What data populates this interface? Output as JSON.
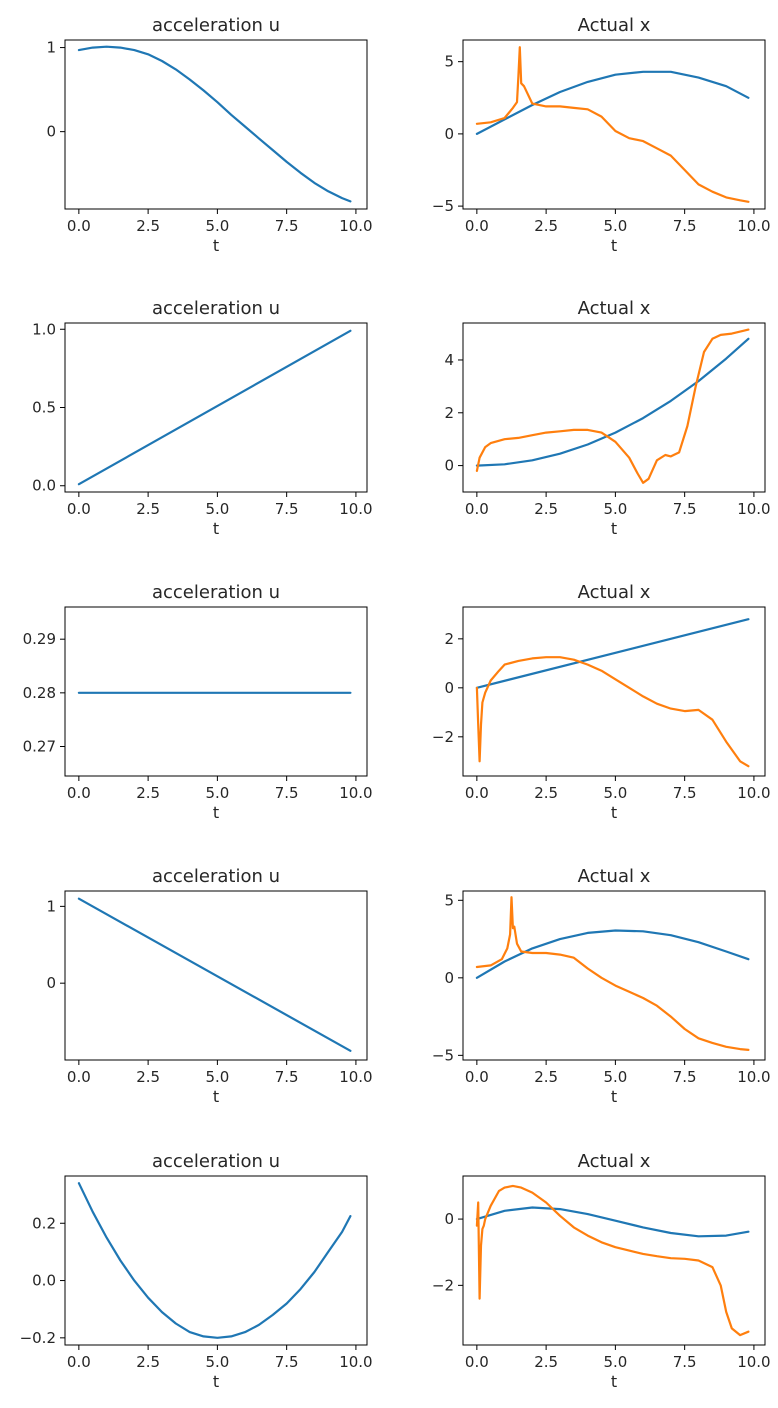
{
  "chart_data": [
    {
      "type": "line",
      "title": "acceleration u",
      "xlabel": "t",
      "ylabel": "",
      "xlim": [
        -0.5,
        10.4
      ],
      "ylim": [
        -0.92,
        1.09
      ],
      "xticks": [
        0.0,
        2.5,
        5.0,
        7.5,
        10.0
      ],
      "xtick_labels": [
        "0.0",
        "2.5",
        "5.0",
        "7.5",
        "10.0"
      ],
      "yticks": [
        0,
        1
      ],
      "ytick_labels": [
        "0",
        "1"
      ],
      "series": [
        {
          "color": "#1f77b4",
          "x": [
            0,
            0.5,
            1,
            1.5,
            2,
            2.5,
            3,
            3.5,
            4,
            4.5,
            5,
            5.5,
            6,
            6.5,
            7,
            7.5,
            8,
            8.5,
            9,
            9.5,
            9.8
          ],
          "y": [
            0.97,
            1.0,
            1.01,
            1.0,
            0.97,
            0.92,
            0.84,
            0.74,
            0.62,
            0.49,
            0.35,
            0.2,
            0.06,
            -0.08,
            -0.22,
            -0.36,
            -0.49,
            -0.61,
            -0.71,
            -0.79,
            -0.83
          ]
        }
      ]
    },
    {
      "type": "line",
      "title": "Actual x",
      "xlabel": "t",
      "ylabel": "",
      "xlim": [
        -0.5,
        10.4
      ],
      "ylim": [
        -5.2,
        6.5
      ],
      "xticks": [
        0.0,
        2.5,
        5.0,
        7.5,
        10.0
      ],
      "xtick_labels": [
        "0.0",
        "2.5",
        "5.0",
        "7.5",
        "10.0"
      ],
      "yticks": [
        -5,
        0,
        5
      ],
      "ytick_labels": [
        "−5",
        "0",
        "5"
      ],
      "series": [
        {
          "color": "#1f77b4",
          "x": [
            0,
            1,
            2,
            3,
            4,
            5,
            6,
            7,
            8,
            9,
            9.8
          ],
          "y": [
            0.0,
            1.0,
            2.0,
            2.9,
            3.6,
            4.1,
            4.3,
            4.3,
            3.9,
            3.3,
            2.5
          ]
        },
        {
          "color": "#ff7f0e",
          "x": [
            0,
            0.5,
            1,
            1.3,
            1.45,
            1.5,
            1.55,
            1.6,
            1.7,
            2,
            2.5,
            3,
            3.5,
            4,
            4.5,
            5,
            5.5,
            6,
            6.5,
            7,
            7.5,
            8,
            8.5,
            9,
            9.5,
            9.8
          ],
          "y": [
            0.7,
            0.8,
            1.1,
            1.8,
            2.2,
            4.0,
            6.0,
            3.5,
            3.3,
            2.1,
            1.9,
            1.9,
            1.8,
            1.7,
            1.2,
            0.2,
            -0.3,
            -0.5,
            -1.0,
            -1.5,
            -2.5,
            -3.5,
            -4.0,
            -4.4,
            -4.6,
            -4.7
          ]
        }
      ]
    },
    {
      "type": "line",
      "title": "acceleration u",
      "xlabel": "t",
      "ylabel": "",
      "xlim": [
        -0.5,
        10.4
      ],
      "ylim": [
        -0.04,
        1.04
      ],
      "xticks": [
        0.0,
        2.5,
        5.0,
        7.5,
        10.0
      ],
      "xtick_labels": [
        "0.0",
        "2.5",
        "5.0",
        "7.5",
        "10.0"
      ],
      "yticks": [
        0.0,
        0.5,
        1.0
      ],
      "ytick_labels": [
        "0.0",
        "0.5",
        "1.0"
      ],
      "series": [
        {
          "color": "#1f77b4",
          "x": [
            0,
            9.8
          ],
          "y": [
            0.01,
            0.99
          ]
        }
      ]
    },
    {
      "type": "line",
      "title": "Actual x",
      "xlabel": "t",
      "ylabel": "",
      "xlim": [
        -0.5,
        10.4
      ],
      "ylim": [
        -1.0,
        5.4
      ],
      "xticks": [
        0.0,
        2.5,
        5.0,
        7.5,
        10.0
      ],
      "xtick_labels": [
        "0.0",
        "2.5",
        "5.0",
        "7.5",
        "10.0"
      ],
      "yticks": [
        0,
        2,
        4
      ],
      "ytick_labels": [
        "0",
        "2",
        "4"
      ],
      "series": [
        {
          "color": "#1f77b4",
          "x": [
            0,
            1,
            2,
            3,
            4,
            5,
            6,
            7,
            8,
            9,
            9.8
          ],
          "y": [
            0.0,
            0.05,
            0.2,
            0.45,
            0.8,
            1.25,
            1.8,
            2.45,
            3.2,
            4.05,
            4.8
          ]
        },
        {
          "color": "#ff7f0e",
          "x": [
            0,
            0.1,
            0.3,
            0.5,
            1,
            1.5,
            2,
            2.5,
            3,
            3.5,
            4,
            4.5,
            5,
            5.5,
            5.8,
            6,
            6.2,
            6.5,
            6.8,
            7,
            7.3,
            7.6,
            7.9,
            8.2,
            8.5,
            8.8,
            9.2,
            9.6,
            9.8
          ],
          "y": [
            -0.2,
            0.3,
            0.7,
            0.85,
            1.0,
            1.05,
            1.15,
            1.25,
            1.3,
            1.35,
            1.35,
            1.25,
            0.9,
            0.3,
            -0.3,
            -0.65,
            -0.5,
            0.2,
            0.4,
            0.35,
            0.5,
            1.5,
            3.0,
            4.3,
            4.8,
            4.95,
            5.0,
            5.1,
            5.15
          ]
        }
      ]
    },
    {
      "type": "line",
      "title": "acceleration u",
      "xlabel": "t",
      "ylabel": "",
      "xlim": [
        -0.5,
        10.4
      ],
      "ylim": [
        0.2645,
        0.296
      ],
      "xticks": [
        0.0,
        2.5,
        5.0,
        7.5,
        10.0
      ],
      "xtick_labels": [
        "0.0",
        "2.5",
        "5.0",
        "7.5",
        "10.0"
      ],
      "yticks": [
        0.27,
        0.28,
        0.29
      ],
      "ytick_labels": [
        "0.27",
        "0.28",
        "0.29"
      ],
      "series": [
        {
          "color": "#1f77b4",
          "x": [
            0,
            9.8
          ],
          "y": [
            0.28,
            0.28
          ]
        }
      ]
    },
    {
      "type": "line",
      "title": "Actual x",
      "xlabel": "t",
      "ylabel": "",
      "xlim": [
        -0.5,
        10.4
      ],
      "ylim": [
        -3.6,
        3.3
      ],
      "xticks": [
        0.0,
        2.5,
        5.0,
        7.5,
        10.0
      ],
      "xtick_labels": [
        "0.0",
        "2.5",
        "5.0",
        "7.5",
        "10.0"
      ],
      "yticks": [
        -2,
        0,
        2
      ],
      "ytick_labels": [
        "−2",
        "0",
        "2"
      ],
      "series": [
        {
          "color": "#1f77b4",
          "x": [
            0,
            9.8
          ],
          "y": [
            0.0,
            2.8
          ]
        },
        {
          "color": "#ff7f0e",
          "x": [
            0,
            0.05,
            0.1,
            0.15,
            0.2,
            0.3,
            0.5,
            0.8,
            1,
            1.5,
            2,
            2.5,
            3,
            3.5,
            4,
            4.5,
            5,
            5.5,
            6,
            6.5,
            7,
            7.5,
            8,
            8.5,
            9,
            9.5,
            9.8
          ],
          "y": [
            0.0,
            -1.5,
            -3.0,
            -1.5,
            -0.6,
            -0.2,
            0.3,
            0.7,
            0.95,
            1.1,
            1.2,
            1.25,
            1.25,
            1.15,
            0.95,
            0.7,
            0.35,
            0.0,
            -0.35,
            -0.65,
            -0.85,
            -0.95,
            -0.9,
            -1.3,
            -2.2,
            -3.0,
            -3.2
          ]
        }
      ]
    },
    {
      "type": "line",
      "title": "acceleration u",
      "xlabel": "t",
      "ylabel": "",
      "xlim": [
        -0.5,
        10.4
      ],
      "ylim": [
        -1.0,
        1.2
      ],
      "xticks": [
        0.0,
        2.5,
        5.0,
        7.5,
        10.0
      ],
      "xtick_labels": [
        "0.0",
        "2.5",
        "5.0",
        "7.5",
        "10.0"
      ],
      "yticks": [
        0,
        1
      ],
      "ytick_labels": [
        "0",
        "1"
      ],
      "series": [
        {
          "color": "#1f77b4",
          "x": [
            0,
            9.8
          ],
          "y": [
            1.1,
            -0.88
          ]
        }
      ]
    },
    {
      "type": "line",
      "title": "Actual x",
      "xlabel": "t",
      "ylabel": "",
      "xlim": [
        -0.5,
        10.4
      ],
      "ylim": [
        -5.3,
        5.6
      ],
      "xticks": [
        0.0,
        2.5,
        5.0,
        7.5,
        10.0
      ],
      "xtick_labels": [
        "0.0",
        "2.5",
        "5.0",
        "7.5",
        "10.0"
      ],
      "yticks": [
        -5,
        0,
        5
      ],
      "ytick_labels": [
        "−5",
        "0",
        "5"
      ],
      "series": [
        {
          "color": "#1f77b4",
          "x": [
            0,
            1,
            2,
            3,
            4,
            5,
            6,
            7,
            8,
            9,
            9.8
          ],
          "y": [
            0.0,
            1.05,
            1.9,
            2.5,
            2.9,
            3.05,
            3.0,
            2.75,
            2.3,
            1.7,
            1.2
          ]
        },
        {
          "color": "#ff7f0e",
          "x": [
            0,
            0.5,
            0.9,
            1.1,
            1.2,
            1.25,
            1.3,
            1.35,
            1.45,
            1.6,
            2,
            2.5,
            3,
            3.5,
            4,
            4.5,
            5,
            5.5,
            6,
            6.5,
            7,
            7.5,
            8,
            8.5,
            9,
            9.5,
            9.8
          ],
          "y": [
            0.7,
            0.8,
            1.2,
            1.9,
            2.8,
            5.2,
            3.2,
            3.3,
            2.2,
            1.7,
            1.6,
            1.6,
            1.5,
            1.3,
            0.6,
            0.0,
            -0.5,
            -0.9,
            -1.3,
            -1.8,
            -2.5,
            -3.3,
            -3.9,
            -4.2,
            -4.45,
            -4.6,
            -4.65
          ]
        }
      ]
    },
    {
      "type": "line",
      "title": "acceleration u",
      "xlabel": "t",
      "ylabel": "",
      "xlim": [
        -0.5,
        10.4
      ],
      "ylim": [
        -0.225,
        0.365
      ],
      "xticks": [
        0.0,
        2.5,
        5.0,
        7.5,
        10.0
      ],
      "xtick_labels": [
        "0.0",
        "2.5",
        "5.0",
        "7.5",
        "10.0"
      ],
      "yticks": [
        -0.2,
        0.0,
        0.2
      ],
      "ytick_labels": [
        "−0.2",
        "0.0",
        "0.2"
      ],
      "series": [
        {
          "color": "#1f77b4",
          "x": [
            0,
            0.5,
            1,
            1.5,
            2,
            2.5,
            3,
            3.5,
            4,
            4.5,
            5,
            5.5,
            6,
            6.5,
            7,
            7.5,
            8,
            8.5,
            9,
            9.5,
            9.8
          ],
          "y": [
            0.34,
            0.24,
            0.15,
            0.07,
            -0.0,
            -0.06,
            -0.11,
            -0.15,
            -0.18,
            -0.195,
            -0.2,
            -0.195,
            -0.18,
            -0.155,
            -0.12,
            -0.08,
            -0.03,
            0.03,
            0.1,
            0.17,
            0.225
          ]
        }
      ]
    },
    {
      "type": "line",
      "title": "Actual x",
      "xlabel": "t",
      "ylabel": "",
      "xlim": [
        -0.5,
        10.4
      ],
      "ylim": [
        -3.8,
        1.3
      ],
      "xticks": [
        0.0,
        2.5,
        5.0,
        7.5,
        10.0
      ],
      "xtick_labels": [
        "0.0",
        "2.5",
        "5.0",
        "7.5",
        "10.0"
      ],
      "yticks": [
        -2,
        0
      ],
      "ytick_labels": [
        "−2",
        "0"
      ],
      "series": [
        {
          "color": "#1f77b4",
          "x": [
            0,
            1,
            2,
            3,
            4,
            5,
            6,
            7,
            8,
            9,
            9.8
          ],
          "y": [
            0.0,
            0.25,
            0.35,
            0.3,
            0.15,
            -0.05,
            -0.25,
            -0.42,
            -0.52,
            -0.5,
            -0.38
          ]
        },
        {
          "color": "#ff7f0e",
          "x": [
            0,
            0.05,
            0.1,
            0.15,
            0.2,
            0.25,
            0.3,
            0.5,
            0.8,
            1,
            1.3,
            1.6,
            2,
            2.5,
            3,
            3.5,
            4,
            4.5,
            5,
            5.5,
            6,
            6.5,
            7,
            7.5,
            8,
            8.5,
            8.8,
            9,
            9.2,
            9.5,
            9.8
          ],
          "y": [
            -0.2,
            0.5,
            -2.4,
            -0.8,
            -0.3,
            -0.2,
            0.0,
            0.4,
            0.85,
            0.95,
            1.0,
            0.95,
            0.8,
            0.5,
            0.1,
            -0.25,
            -0.5,
            -0.7,
            -0.85,
            -0.95,
            -1.05,
            -1.12,
            -1.18,
            -1.2,
            -1.25,
            -1.45,
            -2.0,
            -2.8,
            -3.3,
            -3.5,
            -3.4
          ]
        }
      ]
    }
  ]
}
